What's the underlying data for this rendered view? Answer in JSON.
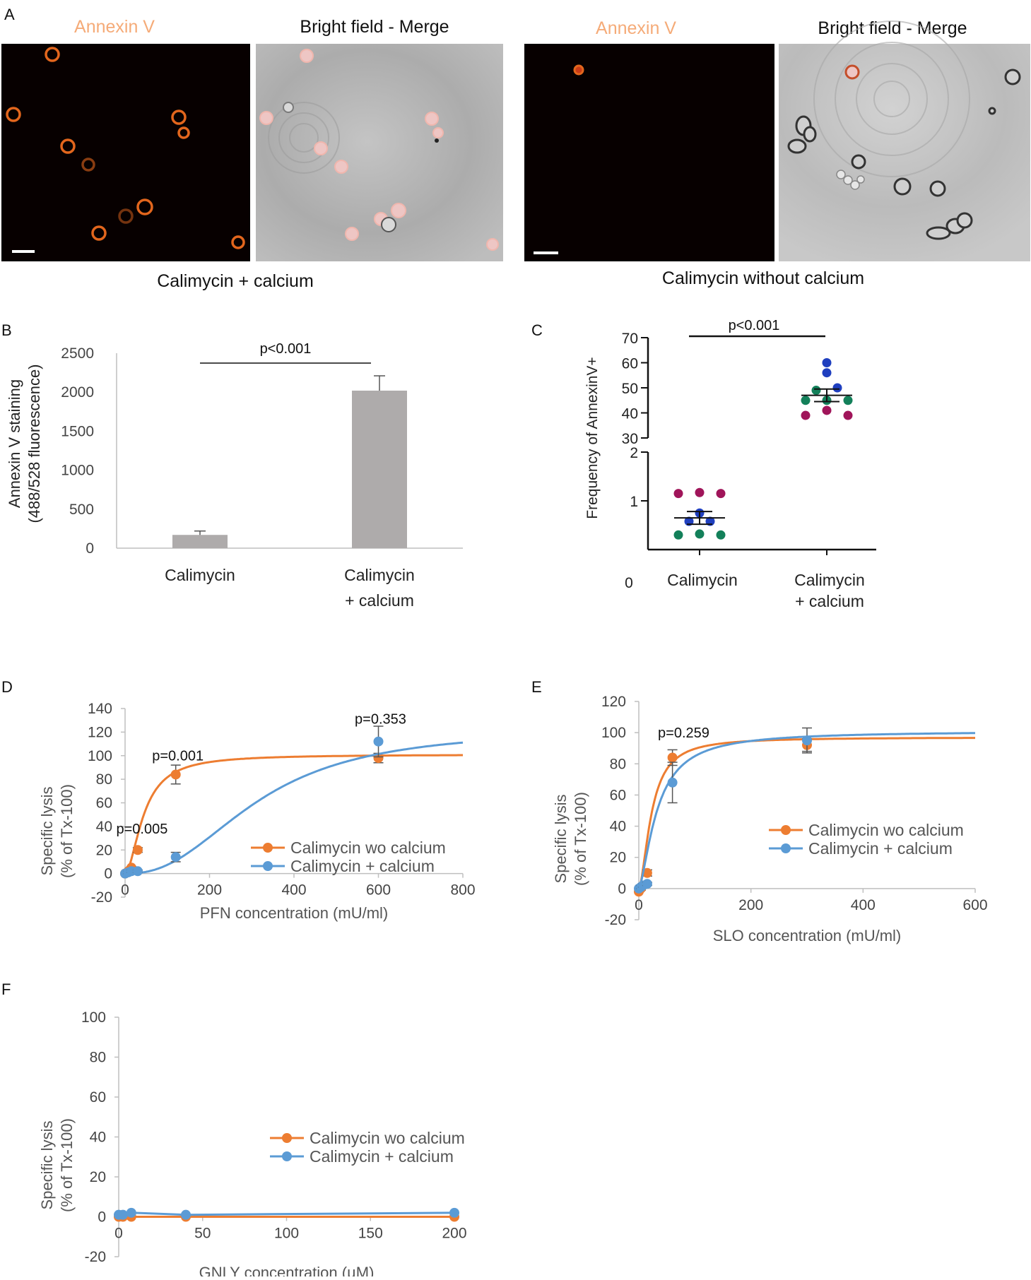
{
  "panels": {
    "A": "A",
    "B": "B",
    "C": "C",
    "D": "D",
    "E": "E",
    "F": "F"
  },
  "panel_a": {
    "left": {
      "fluor_title": "Annexin V",
      "merge_title": "Bright field - Merge",
      "caption": "Calimycin + calcium"
    },
    "right": {
      "fluor_title": "Annexin V",
      "merge_title": "Bright field - Merge",
      "caption": "Calimycin without calcium"
    }
  },
  "chart_data": [
    {
      "id": "B",
      "type": "bar",
      "categories": [
        "Calimycin",
        "Calimycin\n+ calcium"
      ],
      "category_lines": [
        [
          "Calimycin"
        ],
        [
          "Calimycin",
          "+ calcium"
        ]
      ],
      "values": [
        170,
        2020
      ],
      "errors": [
        50,
        190
      ],
      "ylabel_lines": [
        "Annexin V staining",
        "(488/528 fluorescence)"
      ],
      "ylim": [
        0,
        2500
      ],
      "yticks": [
        0,
        500,
        1000,
        1500,
        2000,
        2500
      ],
      "annotation": "p<0.001",
      "bar_color": "#aeabab"
    },
    {
      "id": "C",
      "type": "scatter",
      "ylabel": "Frequency of AnnexinV+",
      "upper_yticks": [
        30,
        40,
        50,
        60,
        70
      ],
      "lower_yticks": [
        1,
        2
      ],
      "zero_label": "0",
      "categories": [
        [
          "Calimycin"
        ],
        [
          "Calimycin",
          "+ calcium"
        ]
      ],
      "annotation": "p<0.001",
      "groups": [
        {
          "mean": 0.65,
          "sem": 0.13,
          "points": [
            {
              "dx": -1,
              "y": 1.15,
              "c": "#a0155a"
            },
            {
              "dx": 0,
              "y": 1.17,
              "c": "#a0155a"
            },
            {
              "dx": 1,
              "y": 1.15,
              "c": "#a0155a"
            },
            {
              "dx": 0,
              "y": 0.75,
              "c": "#1f3fbf"
            },
            {
              "dx": -0.5,
              "y": 0.58,
              "c": "#1f3fbf"
            },
            {
              "dx": 0.5,
              "y": 0.58,
              "c": "#1f3fbf"
            },
            {
              "dx": -1,
              "y": 0.3,
              "c": "#13805a"
            },
            {
              "dx": 0,
              "y": 0.32,
              "c": "#13805a"
            },
            {
              "dx": 1,
              "y": 0.3,
              "c": "#13805a"
            }
          ]
        },
        {
          "mean": 47,
          "sem": 2.5,
          "points": [
            {
              "dx": 0,
              "y": 60,
              "c": "#1f3fbf"
            },
            {
              "dx": 0,
              "y": 56,
              "c": "#1f3fbf"
            },
            {
              "dx": -0.5,
              "y": 49,
              "c": "#13805a"
            },
            {
              "dx": 0.5,
              "y": 50,
              "c": "#1f3fbf"
            },
            {
              "dx": -1,
              "y": 45,
              "c": "#13805a"
            },
            {
              "dx": 0,
              "y": 45,
              "c": "#13805a"
            },
            {
              "dx": 1,
              "y": 45,
              "c": "#13805a"
            },
            {
              "dx": -1,
              "y": 39,
              "c": "#a0155a"
            },
            {
              "dx": 0,
              "y": 41,
              "c": "#a0155a"
            },
            {
              "dx": 1,
              "y": 39,
              "c": "#a0155a"
            }
          ]
        }
      ]
    },
    {
      "id": "D",
      "type": "line",
      "xlabel": "PFN concentration (mU/ml)",
      "ylabel_lines": [
        "Specific lysis",
        "(% of Tx-100)"
      ],
      "xlim": [
        0,
        800
      ],
      "ylim": [
        -20,
        140
      ],
      "xticks": [
        0,
        200,
        400,
        600,
        800
      ],
      "yticks": [
        -20,
        0,
        20,
        40,
        60,
        80,
        100,
        120,
        140
      ],
      "series": [
        {
          "name": "Calimycin wo calcium",
          "color": "#ed7d31",
          "points": [
            [
              0,
              0
            ],
            [
              7.5,
              2
            ],
            [
              15,
              5
            ],
            [
              30,
              20
            ],
            [
              120,
              84
            ],
            [
              600,
              98
            ]
          ],
          "errors": [
            0,
            1,
            1,
            2,
            8,
            4
          ],
          "curve": {
            "model": "hill",
            "top": 101,
            "ec50": 45,
            "n": 1.8
          }
        },
        {
          "name": "Calimycin + calcium",
          "color": "#5b9bd5",
          "points": [
            [
              0,
              0
            ],
            [
              7.5,
              1
            ],
            [
              15,
              2
            ],
            [
              30,
              2
            ],
            [
              120,
              14
            ],
            [
              600,
              112
            ]
          ],
          "errors": [
            0,
            1,
            1,
            1,
            4,
            13
          ],
          "curve": {
            "model": "hill",
            "top": 123,
            "ec50": 315,
            "n": 2.4
          }
        }
      ],
      "annotations": [
        {
          "text": "p=0.005",
          "x": 40,
          "y": 34
        },
        {
          "text": "p=0.001",
          "x": 125,
          "y": 96
        },
        {
          "text": "p=0.353",
          "x": 605,
          "y": 127
        }
      ],
      "legend": "right"
    },
    {
      "id": "E",
      "type": "line",
      "xlabel": "SLO concentration (mU/ml)",
      "ylabel_lines": [
        "Specific lysis",
        "(% of Tx-100)"
      ],
      "xlim": [
        0,
        600
      ],
      "ylim": [
        -20,
        120
      ],
      "xticks": [
        0,
        200,
        400,
        600
      ],
      "yticks": [
        -20,
        0,
        20,
        40,
        60,
        80,
        100,
        120
      ],
      "series": [
        {
          "name": "Calimycin wo calcium",
          "color": "#ed7d31",
          "points": [
            [
              0,
              -2
            ],
            [
              3.75,
              0
            ],
            [
              7.5,
              2
            ],
            [
              15,
              10
            ],
            [
              60,
              84
            ],
            [
              300,
              92
            ]
          ],
          "errors": [
            0,
            1,
            1,
            2,
            5,
            4
          ],
          "curve": {
            "model": "hill",
            "top": 97,
            "ec50": 23,
            "n": 1.7
          }
        },
        {
          "name": "Calimycin + calcium",
          "color": "#5b9bd5",
          "points": [
            [
              0,
              0
            ],
            [
              3.75,
              1
            ],
            [
              7.5,
              2
            ],
            [
              15,
              3
            ],
            [
              60,
              68
            ],
            [
              300,
              95
            ]
          ],
          "errors": [
            0,
            1,
            1,
            1,
            13,
            8
          ],
          "curve": {
            "model": "hill",
            "top": 101,
            "ec50": 33,
            "n": 1.5
          }
        }
      ],
      "annotations": [
        {
          "text": "p=0.259",
          "x": 80,
          "y": 97
        }
      ],
      "legend": "right"
    },
    {
      "id": "F",
      "type": "line",
      "xlabel": "GNLY concentration (µM)",
      "ylabel_lines": [
        "Specific lysis",
        "(% of Tx-100)"
      ],
      "xlim": [
        0,
        200
      ],
      "ylim": [
        -20,
        100
      ],
      "xticks": [
        0,
        50,
        100,
        150,
        200
      ],
      "yticks": [
        -20,
        0,
        20,
        40,
        60,
        80,
        100
      ],
      "series": [
        {
          "name": "Calimycin wo calcium",
          "color": "#ed7d31",
          "points": [
            [
              0,
              0
            ],
            [
              2.5,
              0
            ],
            [
              7.5,
              0
            ],
            [
              40,
              0
            ],
            [
              200,
              0
            ]
          ],
          "errors": [
            0,
            0,
            0,
            0,
            0
          ]
        },
        {
          "name": "Calimycin + calcium",
          "color": "#5b9bd5",
          "points": [
            [
              0,
              1
            ],
            [
              2.5,
              1
            ],
            [
              7.5,
              2
            ],
            [
              40,
              1
            ],
            [
              200,
              2
            ]
          ],
          "errors": [
            0,
            0,
            0,
            0,
            0
          ]
        }
      ],
      "annotations": [],
      "legend": "center"
    }
  ]
}
